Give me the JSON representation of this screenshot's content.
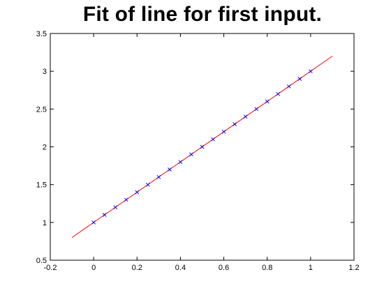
{
  "chart_data": {
    "type": "scatter",
    "title": "Fit of line for first input.",
    "xlabel": "",
    "ylabel": "",
    "xlim": [
      -0.2,
      1.2
    ],
    "ylim": [
      0.5,
      3.5
    ],
    "xticks": [
      "-0.2",
      "0",
      "0.2",
      "0.4",
      "0.6",
      "0.8",
      "1",
      "1.2"
    ],
    "yticks": [
      "0.5",
      "1",
      "1.5",
      "2",
      "2.5",
      "3",
      "3.5"
    ],
    "grid": false,
    "legend": "none",
    "series": [
      {
        "kind": "line",
        "color": "#ff0000",
        "x": [
          -0.1,
          1.1
        ],
        "y": [
          0.8,
          3.2
        ]
      },
      {
        "kind": "points",
        "marker": "x",
        "color": "#0000ff",
        "x": [
          0,
          0.05,
          0.1,
          0.15,
          0.2,
          0.25,
          0.3,
          0.35,
          0.4,
          0.45,
          0.5,
          0.55,
          0.6,
          0.65,
          0.7,
          0.75,
          0.8,
          0.85,
          0.9,
          0.95,
          1.0
        ],
        "y": [
          1.0,
          1.1,
          1.2,
          1.3,
          1.4,
          1.5,
          1.6,
          1.7,
          1.8,
          1.9,
          2.0,
          2.1,
          2.2,
          2.3,
          2.4,
          2.5,
          2.6,
          2.7,
          2.8,
          2.9,
          3.0
        ]
      }
    ]
  }
}
